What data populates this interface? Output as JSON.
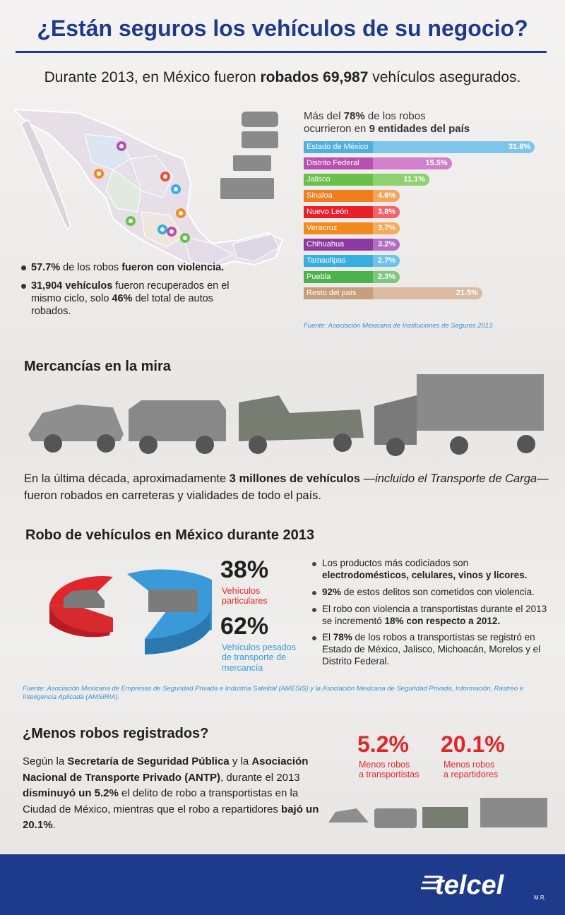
{
  "title": "¿Están seguros los vehículos de su negocio?",
  "intro": {
    "pre": "Durante 2013, en México fueron ",
    "bold": "robados 69,987",
    "post": " vehículos asegurados."
  },
  "map_bullets": [
    {
      "bold": "57.7%",
      "text": " de los robos ",
      "bold2": "fueron con violencia."
    },
    {
      "bold": "31,904 vehículos",
      "text": " fueron recuperados en el mismo ciclo, solo ",
      "bold2": "46%",
      "post": " del total de autos robados."
    }
  ],
  "bars_intro": {
    "l1pre": "Más del ",
    "l1bold": "78%",
    "l1post": " de los robos",
    "l2pre": "ocurrieron en ",
    "l2bold": "9 entidades del país"
  },
  "chart_data": {
    "type": "bar",
    "categories": [
      "Estado de México",
      "Distrito Federal",
      "Jalisco",
      "Sinaloa",
      "Nuevo León",
      "Veracruz",
      "Chihuahua",
      "Tamaulipas",
      "Puebla",
      "Resto del país"
    ],
    "values": [
      31.8,
      15.5,
      11.1,
      4.6,
      3.8,
      3.7,
      3.2,
      2.7,
      2.3,
      21.5
    ],
    "value_labels": [
      "31.8%",
      "15.5%",
      "11.1%",
      "4.6%",
      "3.8%",
      "3.7%",
      "3.2%",
      "2.7%",
      "2.3%",
      "21.5%"
    ],
    "colors": [
      "#4fb0df",
      "#b94fb0",
      "#6cbf4b",
      "#f07d1e",
      "#e8202a",
      "#f08a1e",
      "#8b3aa0",
      "#37aee0",
      "#49b24a",
      "#c79d7c"
    ],
    "light_colors": [
      "#7dc6ea",
      "#d27fcc",
      "#8fd16e",
      "#f5a45c",
      "#f26269",
      "#f5ab5b",
      "#b06ec2",
      "#6ec3e8",
      "#7cc97d",
      "#dabba2"
    ],
    "xlim": [
      0,
      34
    ]
  },
  "source1": "Fuente: Asociación Mexicana de Instituciones de Seguros 2013",
  "section2_title": "Mercancías en la mira",
  "decade": {
    "pre": "En la última década, aproximadamente ",
    "bold": "3 millones de vehículos",
    "mid": " —",
    "ital": "incluido el Transporte de Carga",
    "post": "— fueron robados en carreteras y vialidades de todo el país."
  },
  "section3_title": "Robo de vehículos en México durante 2013",
  "pie": {
    "p1": "38%",
    "p1_label_a": "Vehículos",
    "p1_label_b": "particulares",
    "p2": "62%",
    "p2_label_a": "Vehículos pesados",
    "p2_label_b": "de transporte de",
    "p2_label_c": "mercancía",
    "p1_color": "#e0262b",
    "p2_color": "#3a9ad9"
  },
  "bullets2": [
    {
      "text": "Los productos más codiciados son ",
      "bold": "electrodomésticos, celulares, vinos y licores."
    },
    {
      "bold": "92%",
      "text": " de estos delitos son cometidos con violencia."
    },
    {
      "text": "El robo con violencia a transportistas durante el 2013 se incrementó ",
      "bold": "18% con respecto a 2012."
    },
    {
      "text": "El ",
      "bold": "78%",
      "text2": " de los robos a transportistas se registró en Estado de México, Jalisco, Michoacán, Morelos y el Distrito Federal."
    }
  ],
  "source2": "Fuente: Asociación Mexicana de Empresas de Seguridad Privada e Industria Satelital (AMESIS) y la Asociación Mexicana de Seguridad Privada, Información, Rastreo e Inteligencia Aplicada (AMSIRIA).",
  "section4_title": "¿Menos robos registrados?",
  "para3": {
    "a": "Según la ",
    "b": "Secretaría de Seguridad Pública",
    "c": " y la ",
    "d": "Asociación Nacional de Transporte Privado (ANTP)",
    "e": ", durante el 2013 ",
    "f": "disminuyó un 5.2%",
    "g": " el delito de robo a transportistas en la Ciudad de México, mientras que el robo a repartidores ",
    "h": "bajó un 20.1%",
    "i": "."
  },
  "stat3": {
    "a": "5.2%",
    "a1": "Menos robos",
    "a2": "a transportistas",
    "b": "20.1%",
    "b1": "Menos robos",
    "b2": "a repartidores"
  },
  "footer": {
    "logo": "telcel",
    "mark": "M.R."
  }
}
